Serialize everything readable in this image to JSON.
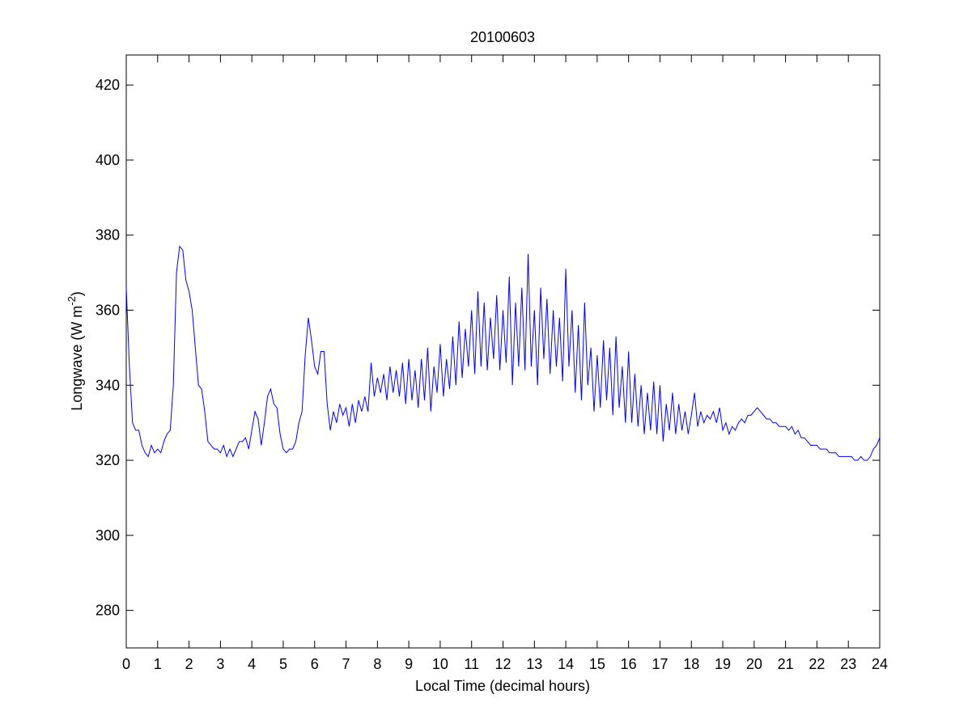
{
  "chart_data": {
    "type": "line",
    "title": "20100603",
    "xlabel": "Local Time (decimal hours)",
    "ylabel": [
      "Longwave (W m",
      "-2",
      ")"
    ],
    "xlim": [
      0,
      24
    ],
    "ylim": [
      270,
      428
    ],
    "xticks": [
      0,
      1,
      2,
      3,
      4,
      5,
      6,
      7,
      8,
      9,
      10,
      11,
      12,
      13,
      14,
      15,
      16,
      17,
      18,
      19,
      20,
      21,
      22,
      23,
      24
    ],
    "yticks": [
      280,
      300,
      320,
      340,
      360,
      380,
      400,
      420
    ],
    "grid": false,
    "series": [
      {
        "color": "#0000ff",
        "x": [
          0,
          0.1,
          0.2,
          0.3,
          0.4,
          0.5,
          0.6,
          0.7,
          0.8,
          0.9,
          1,
          1.1,
          1.2,
          1.3,
          1.4,
          1.5,
          1.6,
          1.7,
          1.8,
          1.9,
          2,
          2.1,
          2.2,
          2.3,
          2.4,
          2.5,
          2.6,
          2.7,
          2.8,
          2.9,
          3,
          3.1,
          3.2,
          3.3,
          3.4,
          3.5,
          3.6,
          3.7,
          3.8,
          3.9,
          4,
          4.1,
          4.2,
          4.3,
          4.4,
          4.5,
          4.6,
          4.7,
          4.8,
          4.9,
          5,
          5.1,
          5.2,
          5.3,
          5.4,
          5.5,
          5.6,
          5.7,
          5.8,
          5.9,
          6,
          6.1,
          6.2,
          6.3,
          6.4,
          6.5,
          6.6,
          6.7,
          6.8,
          6.9,
          7,
          7.1,
          7.2,
          7.3,
          7.4,
          7.5,
          7.6,
          7.7,
          7.8,
          7.9,
          8,
          8.1,
          8.2,
          8.3,
          8.4,
          8.5,
          8.6,
          8.7,
          8.8,
          8.9,
          9,
          9.1,
          9.2,
          9.3,
          9.4,
          9.5,
          9.6,
          9.7,
          9.8,
          9.9,
          10,
          10.1,
          10.2,
          10.3,
          10.4,
          10.5,
          10.6,
          10.7,
          10.8,
          10.9,
          11,
          11.1,
          11.2,
          11.3,
          11.4,
          11.5,
          11.6,
          11.7,
          11.8,
          11.9,
          12,
          12.1,
          12.2,
          12.3,
          12.4,
          12.5,
          12.6,
          12.7,
          12.8,
          12.9,
          13,
          13.1,
          13.2,
          13.3,
          13.4,
          13.5,
          13.6,
          13.7,
          13.8,
          13.9,
          14,
          14.1,
          14.2,
          14.3,
          14.4,
          14.5,
          14.6,
          14.7,
          14.8,
          14.9,
          15,
          15.1,
          15.2,
          15.3,
          15.4,
          15.5,
          15.6,
          15.7,
          15.8,
          15.9,
          16,
          16.1,
          16.2,
          16.3,
          16.4,
          16.5,
          16.6,
          16.7,
          16.8,
          16.9,
          17,
          17.1,
          17.2,
          17.3,
          17.4,
          17.5,
          17.6,
          17.7,
          17.8,
          17.9,
          18,
          18.1,
          18.2,
          18.3,
          18.4,
          18.5,
          18.6,
          18.7,
          18.8,
          18.9,
          19,
          19.1,
          19.2,
          19.3,
          19.4,
          19.5,
          19.6,
          19.7,
          19.8,
          19.9,
          20,
          20.1,
          20.2,
          20.3,
          20.4,
          20.5,
          20.6,
          20.7,
          20.8,
          20.9,
          21,
          21.1,
          21.2,
          21.3,
          21.4,
          21.5,
          21.6,
          21.7,
          21.8,
          21.9,
          22,
          22.1,
          22.2,
          22.3,
          22.4,
          22.5,
          22.6,
          22.7,
          22.8,
          22.9,
          23,
          23.1,
          23.2,
          23.3,
          23.4,
          23.5,
          23.6,
          23.7,
          23.8,
          23.9,
          24
        ],
        "values": [
          366,
          345,
          330,
          328,
          328,
          324,
          322,
          321,
          324,
          322,
          323,
          322,
          325,
          327,
          328,
          340,
          370,
          377,
          376,
          368,
          365,
          360,
          350,
          340,
          339,
          333,
          325,
          324,
          323,
          323,
          322,
          324,
          321,
          323,
          321,
          323,
          325,
          325,
          326,
          323,
          328,
          333,
          331,
          324,
          330,
          337,
          339,
          335,
          334,
          327,
          323,
          322,
          323,
          323,
          325,
          330,
          333,
          348,
          358,
          352,
          345,
          343,
          349,
          349,
          335,
          328,
          333,
          330,
          335,
          332,
          334,
          329,
          335,
          330,
          336,
          333,
          337,
          333,
          346,
          337,
          342,
          338,
          343,
          336,
          345,
          338,
          344,
          337,
          346,
          335,
          347,
          336,
          344,
          334,
          347,
          336,
          350,
          333,
          345,
          338,
          351,
          337,
          347,
          339,
          353,
          340,
          357,
          342,
          355,
          345,
          360,
          343,
          365,
          345,
          362,
          344,
          358,
          347,
          364,
          344,
          360,
          346,
          369,
          340,
          362,
          345,
          366,
          344,
          375,
          345,
          360,
          340,
          366,
          347,
          363,
          343,
          360,
          345,
          358,
          341,
          371,
          345,
          360,
          338,
          356,
          336,
          362,
          340,
          350,
          333,
          348,
          334,
          352,
          336,
          350,
          332,
          353,
          334,
          345,
          330,
          349,
          330,
          343,
          329,
          340,
          327,
          338,
          328,
          341,
          327,
          340,
          325,
          335,
          328,
          338,
          327,
          335,
          328,
          333,
          327,
          332,
          338,
          329,
          333,
          330,
          332,
          331,
          333,
          330,
          334,
          328,
          330,
          327,
          329,
          328,
          330,
          331,
          330,
          332,
          332,
          333,
          334,
          333,
          332,
          331,
          331,
          330,
          330,
          329,
          329,
          329,
          328,
          329,
          327,
          328,
          326,
          326,
          325,
          324,
          324,
          324,
          323,
          323,
          323,
          322,
          322,
          322,
          321,
          321,
          321,
          321,
          321,
          320,
          320,
          321,
          320,
          320,
          321,
          323,
          324,
          326
        ]
      }
    ]
  }
}
